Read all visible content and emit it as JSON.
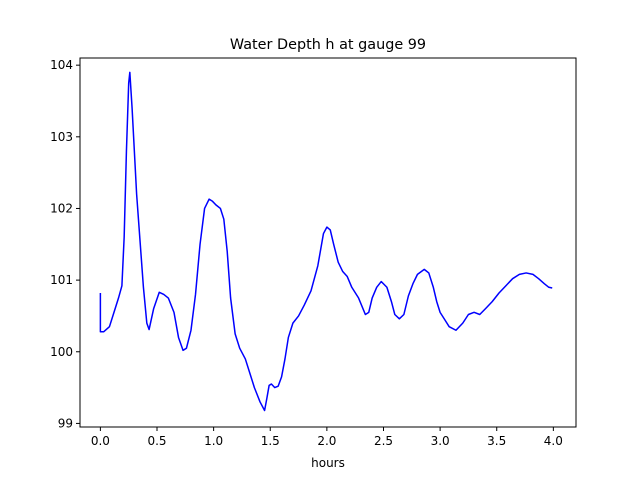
{
  "chart_data": {
    "type": "line",
    "title": "Water Depth h at gauge 99",
    "xlabel": "hours",
    "ylabel": "",
    "xlim": [
      -0.18,
      4.2
    ],
    "ylim": [
      98.95,
      104.1
    ],
    "grid": false,
    "x_ticks": [
      0.0,
      0.5,
      1.0,
      1.5,
      2.0,
      2.5,
      3.0,
      3.5,
      4.0
    ],
    "x_tick_labels": [
      "0.0",
      "0.5",
      "1.0",
      "1.5",
      "2.0",
      "2.5",
      "3.0",
      "3.5",
      "4.0"
    ],
    "y_ticks": [
      99,
      100,
      101,
      102,
      103,
      104
    ],
    "y_tick_labels": [
      "99",
      "100",
      "101",
      "102",
      "103",
      "104"
    ],
    "series": [
      {
        "color": "#0000ff",
        "x": [
          0.0,
          0.0,
          0.03,
          0.08,
          0.12,
          0.16,
          0.19,
          0.21,
          0.23,
          0.25,
          0.26,
          0.28,
          0.32,
          0.38,
          0.41,
          0.43,
          0.47,
          0.52,
          0.56,
          0.6,
          0.65,
          0.69,
          0.73,
          0.76,
          0.8,
          0.84,
          0.88,
          0.92,
          0.96,
          0.99,
          1.02,
          1.06,
          1.09,
          1.12,
          1.15,
          1.19,
          1.23,
          1.28,
          1.32,
          1.36,
          1.41,
          1.45,
          1.47,
          1.49,
          1.51,
          1.54,
          1.57,
          1.6,
          1.63,
          1.66,
          1.7,
          1.75,
          1.8,
          1.86,
          1.92,
          1.97,
          2.0,
          2.03,
          2.06,
          2.1,
          2.14,
          2.18,
          2.22,
          2.28,
          2.34,
          2.37,
          2.4,
          2.44,
          2.48,
          2.53,
          2.57,
          2.6,
          2.64,
          2.68,
          2.72,
          2.76,
          2.8,
          2.86,
          2.9,
          2.94,
          2.97,
          3.0,
          3.04,
          3.08,
          3.14,
          3.2,
          3.25,
          3.3,
          3.35,
          3.4,
          3.46,
          3.52,
          3.58,
          3.64,
          3.7,
          3.76,
          3.82,
          3.87,
          3.92,
          3.96,
          3.99
        ],
        "values": [
          100.82,
          100.28,
          100.28,
          100.35,
          100.55,
          100.75,
          100.92,
          101.6,
          102.8,
          103.75,
          103.9,
          103.4,
          102.2,
          100.9,
          100.4,
          100.31,
          100.6,
          100.83,
          100.8,
          100.75,
          100.55,
          100.2,
          100.02,
          100.05,
          100.3,
          100.8,
          101.5,
          102.0,
          102.13,
          102.1,
          102.05,
          102.0,
          101.85,
          101.4,
          100.75,
          100.25,
          100.05,
          99.9,
          99.7,
          99.5,
          99.3,
          99.18,
          99.35,
          99.53,
          99.55,
          99.5,
          99.52,
          99.65,
          99.9,
          100.2,
          100.4,
          100.5,
          100.65,
          100.85,
          101.2,
          101.65,
          101.74,
          101.7,
          101.5,
          101.25,
          101.12,
          101.05,
          100.9,
          100.75,
          100.52,
          100.55,
          100.75,
          100.9,
          100.98,
          100.9,
          100.7,
          100.52,
          100.46,
          100.52,
          100.78,
          100.95,
          101.08,
          101.15,
          101.1,
          100.9,
          100.7,
          100.55,
          100.45,
          100.35,
          100.3,
          100.4,
          100.52,
          100.55,
          100.52,
          100.6,
          100.7,
          100.82,
          100.92,
          101.02,
          101.08,
          101.1,
          101.08,
          101.02,
          100.95,
          100.9,
          100.89
        ]
      }
    ]
  }
}
